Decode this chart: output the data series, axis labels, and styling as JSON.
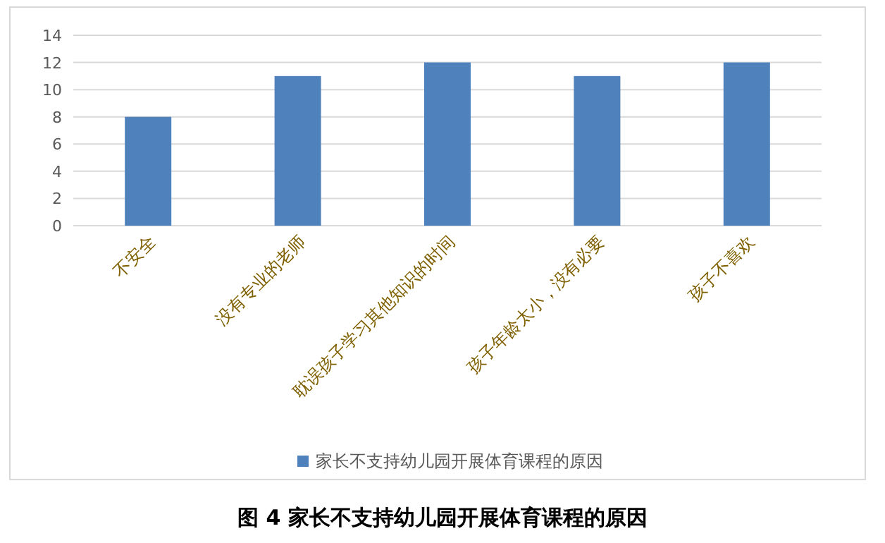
{
  "chart_data": {
    "type": "bar",
    "title": "图 4  家长不支持幼儿园开展体育课程的原因",
    "categories": [
      "不安全",
      "没有专业的老师",
      "耽误孩子学习其他知识的时间",
      "孩子年龄太小，没有必要",
      "孩子不喜欢"
    ],
    "series": [
      {
        "name": "家长不支持幼儿园开展体育课程的原因",
        "color": "#4f81bd",
        "values": [
          8,
          11,
          12,
          11,
          12
        ]
      }
    ],
    "ylim": [
      0,
      14
    ],
    "yticks": [
      0,
      2,
      4,
      6,
      8,
      10,
      12,
      14
    ],
    "grid": "y",
    "legend": "bottom"
  }
}
